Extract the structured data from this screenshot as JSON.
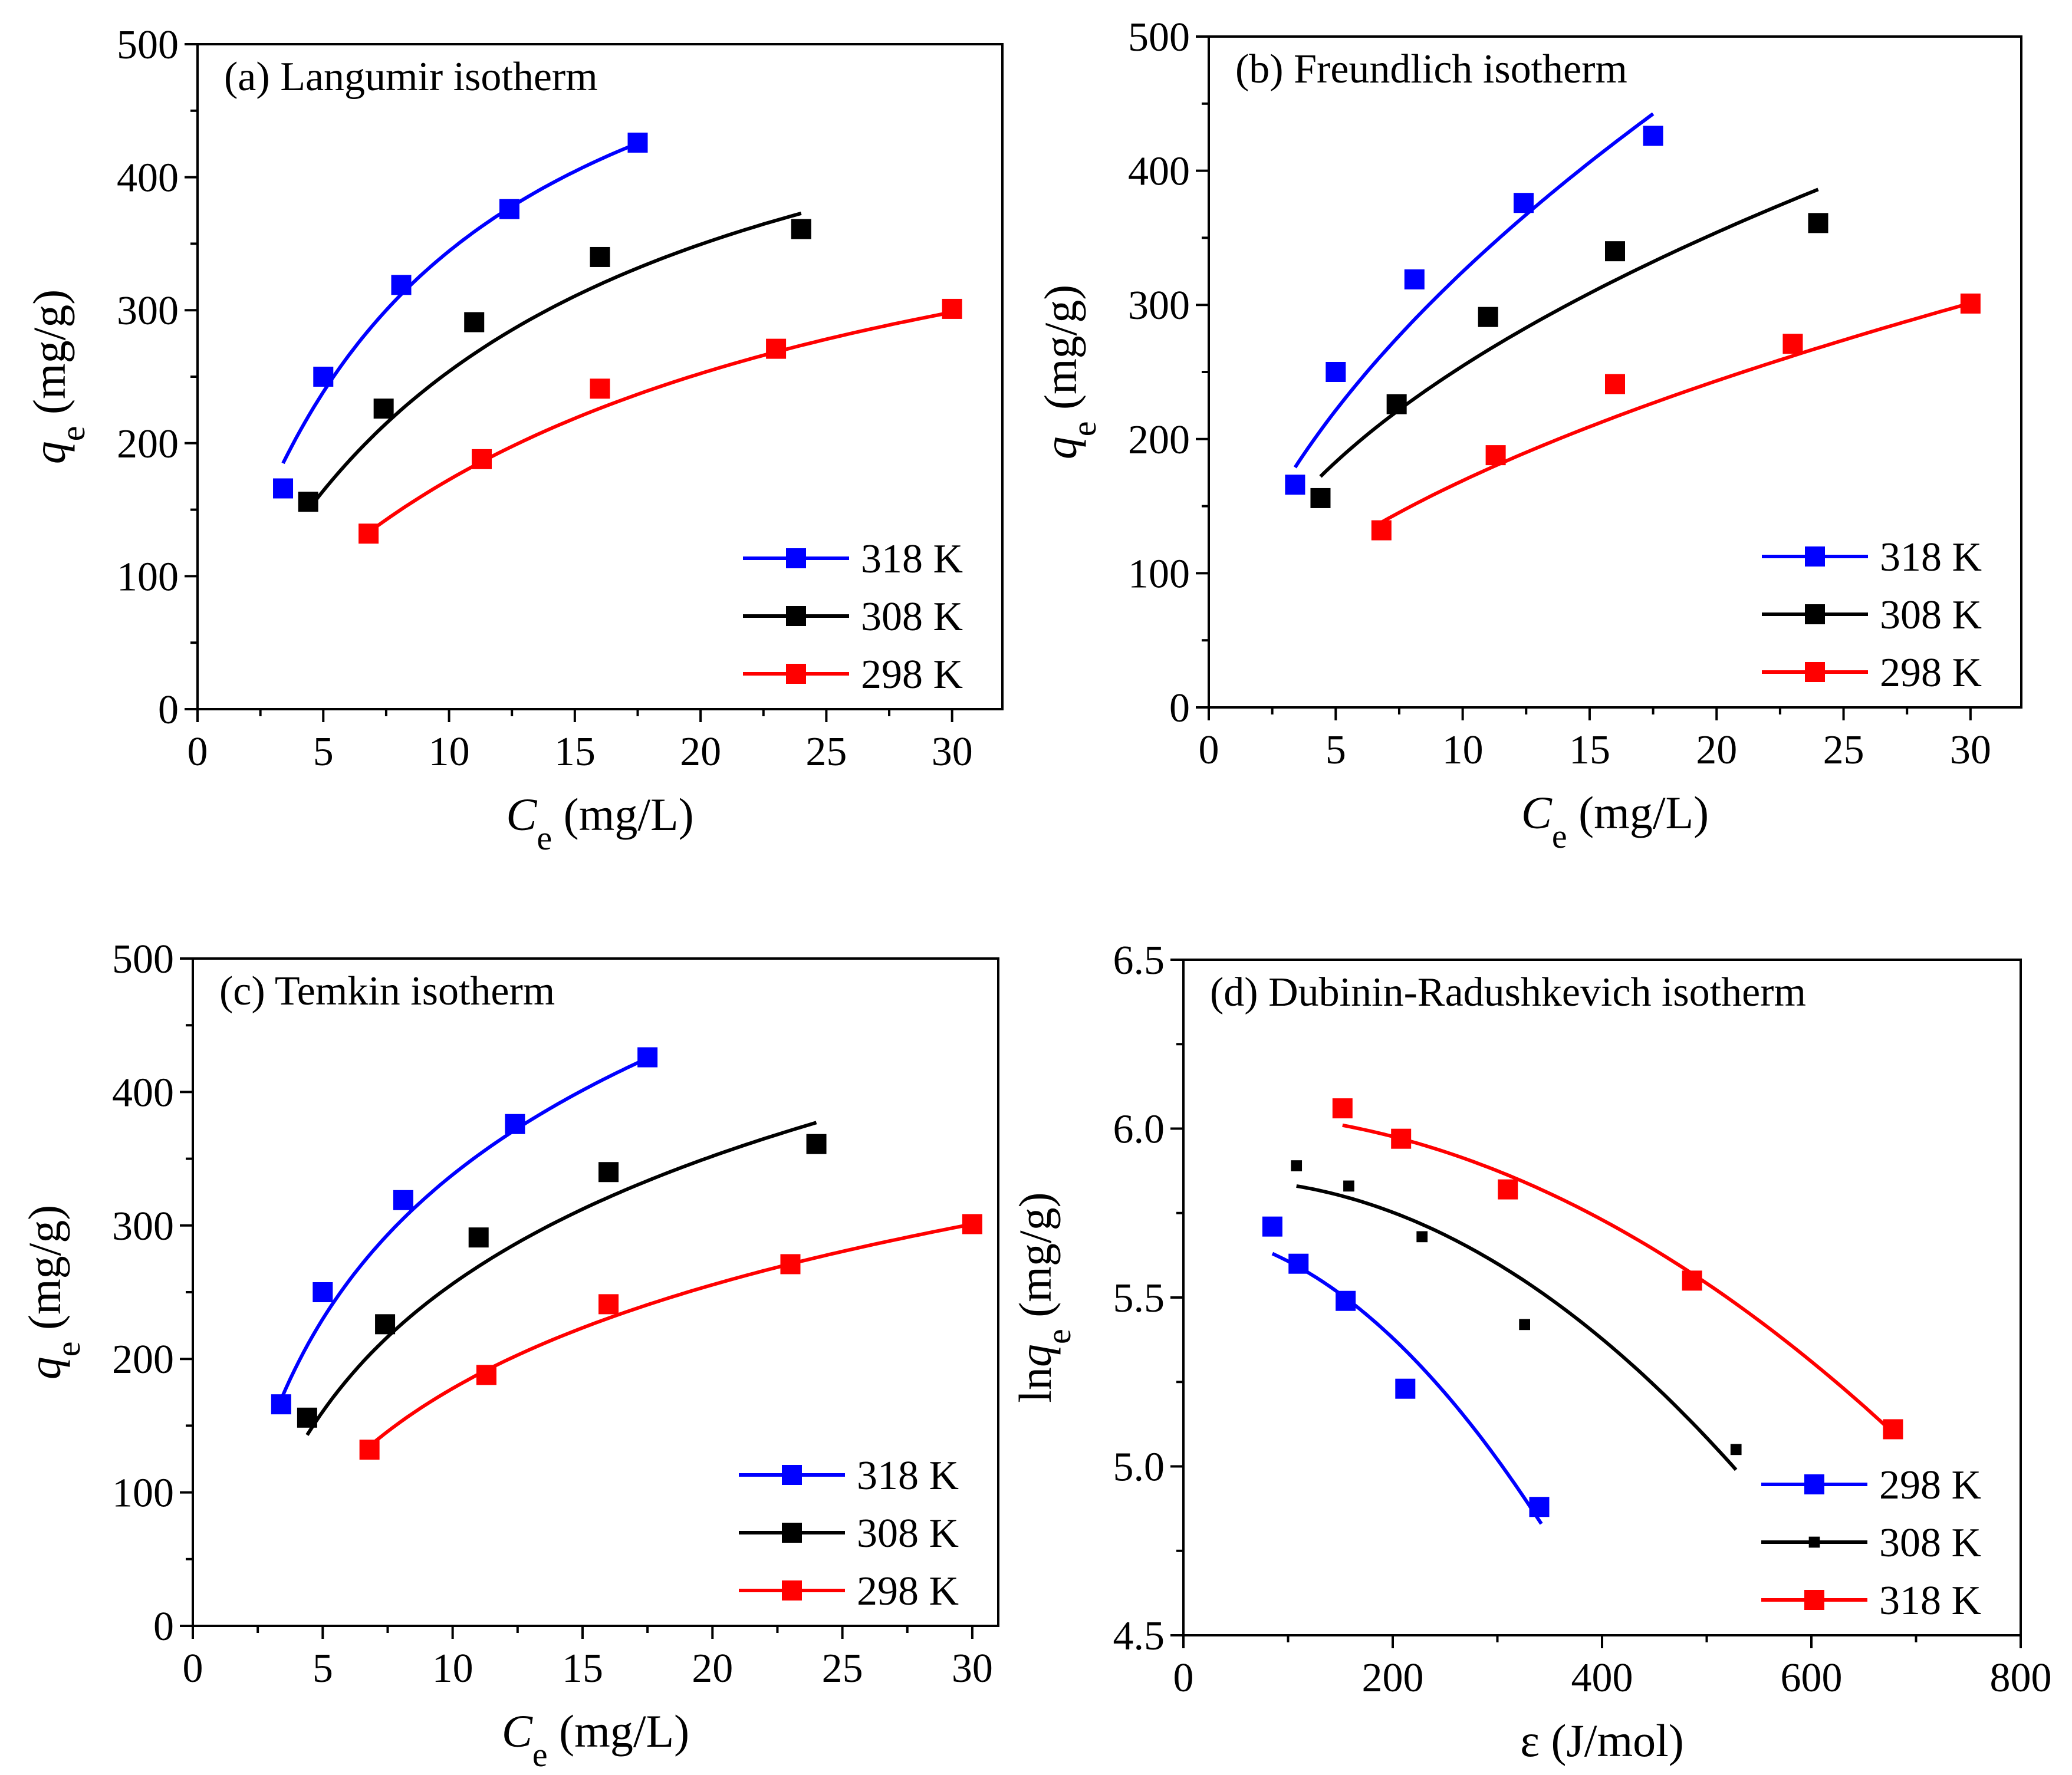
{
  "chart_data": [
    {
      "type": "scatter",
      "panel": "a",
      "title": "(a)  Langumir isotherm",
      "xlabel": {
        "symbol": "C",
        "subscript": "e",
        "unit": " (mg/L)"
      },
      "ylabel": {
        "symbol": "q",
        "subscript": "e",
        "unit": " (mg/g)"
      },
      "xlim": [
        0,
        32
      ],
      "ylim": [
        0,
        500
      ],
      "xticks": [
        0,
        5,
        10,
        15,
        20,
        25,
        30
      ],
      "yticks": [
        0,
        100,
        200,
        300,
        400,
        500
      ],
      "tick_decimals": 0,
      "legend_position": "bottom-right",
      "series": [
        {
          "name": "318 K",
          "color": "#0000ff",
          "marker_size": 1.0,
          "x": [
            3.4,
            5.0,
            8.1,
            12.4,
            17.5
          ],
          "y": [
            166,
            250,
            319,
            376,
            426
          ],
          "fit_x": [
            3.4,
            17.4
          ],
          "fit": {
            "model": "langmuir",
            "qm": 620,
            "K": 0.125
          }
        },
        {
          "name": "308 K",
          "color": "#000000",
          "marker_size": 1.0,
          "x": [
            4.4,
            7.4,
            11.0,
            16.0,
            24.0
          ],
          "y": [
            156,
            226,
            291,
            340,
            361
          ],
          "fit_x": [
            4.4,
            24.0
          ],
          "fit": {
            "model": "langmuir",
            "qm": 560,
            "K": 0.083
          }
        },
        {
          "name": "298 K",
          "color": "#ff0000",
          "marker_size": 1.0,
          "x": [
            6.8,
            11.3,
            16.0,
            23.0,
            30.0
          ],
          "y": [
            132,
            188,
            241,
            271,
            301
          ],
          "fit_x": [
            6.8,
            30.0
          ],
          "fit": {
            "model": "langmuir",
            "qm": 470,
            "K": 0.058
          }
        }
      ]
    },
    {
      "type": "scatter",
      "panel": "b",
      "title": "(b)  Freundlich isotherm",
      "xlabel": {
        "symbol": "C",
        "subscript": "e",
        "unit": " (mg/L)"
      },
      "ylabel": {
        "symbol": "q",
        "subscript": "e",
        "unit": " (mg/g)"
      },
      "xlim": [
        0,
        32
      ],
      "ylim": [
        0,
        500
      ],
      "xticks": [
        0,
        5,
        10,
        15,
        20,
        25,
        30
      ],
      "yticks": [
        0,
        100,
        200,
        300,
        400,
        500
      ],
      "tick_decimals": 0,
      "legend_position": "bottom-right",
      "series": [
        {
          "name": "318 K",
          "color": "#0000ff",
          "marker_size": 1.0,
          "x": [
            3.4,
            5.0,
            8.1,
            12.4,
            17.5
          ],
          "y": [
            166,
            250,
            319,
            376,
            426
          ],
          "fit_x": [
            3.4,
            17.5
          ],
          "fit": {
            "model": "freundlich",
            "Kf": 91,
            "n": 1.81
          }
        },
        {
          "name": "308 K",
          "color": "#000000",
          "marker_size": 1.0,
          "x": [
            4.4,
            7.4,
            11.0,
            16.0,
            24.0
          ],
          "y": [
            156,
            226,
            291,
            340,
            361
          ],
          "fit_x": [
            4.4,
            24.0
          ],
          "fit": {
            "model": "freundlich",
            "Kf": 85,
            "n": 2.1
          }
        },
        {
          "name": "298 K",
          "color": "#ff0000",
          "marker_size": 1.0,
          "x": [
            6.8,
            11.3,
            16.0,
            23.0,
            30.0
          ],
          "y": [
            132,
            188,
            241,
            271,
            301
          ],
          "fit_x": [
            6.8,
            30.0
          ],
          "fit": {
            "model": "freundlich",
            "Kf": 50.3,
            "n": 1.9
          }
        }
      ]
    },
    {
      "type": "scatter",
      "panel": "c",
      "title": "(c) Temkin isotherm",
      "xlabel": {
        "symbol": "C",
        "subscript": "e",
        "unit": " (mg/L)"
      },
      "ylabel": {
        "symbol": "q",
        "subscript": "e",
        "unit": " (mg/g)"
      },
      "xlim": [
        0,
        31
      ],
      "ylim": [
        0,
        500
      ],
      "xticks": [
        0,
        5,
        10,
        15,
        20,
        25,
        30
      ],
      "yticks": [
        0,
        100,
        200,
        300,
        400,
        500
      ],
      "tick_decimals": 0,
      "legend_position": "bottom-right",
      "series": [
        {
          "name": "318 K",
          "color": "#0000ff",
          "marker_size": 1.0,
          "x": [
            3.4,
            5.0,
            8.1,
            12.4,
            17.5
          ],
          "y": [
            166,
            250,
            319,
            376,
            426
          ],
          "fit_x": [
            3.4,
            17.4
          ],
          "fit": {
            "model": "temkin",
            "A": -21.2,
            "B": 156
          }
        },
        {
          "name": "308 K",
          "color": "#000000",
          "marker_size": 1.0,
          "x": [
            4.4,
            7.4,
            11.0,
            16.0,
            24.0
          ],
          "y": [
            156,
            226,
            291,
            340,
            361
          ],
          "fit_x": [
            4.4,
            24.0
          ],
          "fit": {
            "model": "temkin",
            "A": -61.5,
            "B": 138
          }
        },
        {
          "name": "298 K",
          "color": "#ff0000",
          "marker_size": 1.0,
          "x": [
            6.8,
            11.3,
            16.0,
            23.0,
            30.0
          ],
          "y": [
            132,
            188,
            241,
            271,
            301
          ],
          "fit_x": [
            6.8,
            30.0
          ],
          "fit": {
            "model": "temkin",
            "A": -80.0,
            "B": 112
          }
        }
      ]
    },
    {
      "type": "scatter",
      "panel": "d",
      "title": "(d)  Dubinin-Radushkevich isotherm",
      "xlabel": {
        "symbol": "",
        "subscript": "",
        "unit": "ε (J/mol)"
      },
      "ylabel": {
        "symbol": "lnq",
        "subscript": "e",
        "unit": " (mg/g)"
      },
      "xlim": [
        0,
        800
      ],
      "ylim": [
        4.5,
        6.5
      ],
      "xticks": [
        0,
        200,
        400,
        600,
        800
      ],
      "yticks": [
        4.5,
        5.0,
        5.5,
        6.0,
        6.5
      ],
      "tick_decimals": 1,
      "legend_position": "bottom-right",
      "series": [
        {
          "name": "298 K",
          "color": "#0000ff",
          "marker_size": 1.0,
          "x": [
            85,
            110,
            155,
            212,
            340
          ],
          "y": [
            5.71,
            5.6,
            5.49,
            5.23,
            4.88
          ],
          "fit_x": [
            85,
            342
          ],
          "fit": {
            "model": "quadratic",
            "points": [
              [
                85,
                5.63
              ],
              [
                200,
                5.38
              ],
              [
                342,
                4.83
              ]
            ]
          }
        },
        {
          "name": "308 K",
          "color": "#000000",
          "marker_size": 0.55,
          "x": [
            108,
            158,
            228,
            326,
            528
          ],
          "y": [
            5.89,
            5.83,
            5.68,
            5.42,
            5.05
          ],
          "fit_x": [
            108,
            528
          ],
          "fit": {
            "model": "quadratic",
            "points": [
              [
                108,
                5.83
              ],
              [
                300,
                5.6
              ],
              [
                528,
                4.99
              ]
            ]
          }
        },
        {
          "name": "318 K",
          "color": "#ff0000",
          "marker_size": 1.0,
          "x": [
            152,
            208,
            310,
            486,
            678
          ],
          "y": [
            6.06,
            5.97,
            5.82,
            5.55,
            5.11
          ],
          "fit_x": [
            152,
            678
          ],
          "fit": {
            "model": "quadratic",
            "points": [
              [
                152,
                6.01
              ],
              [
                400,
                5.73
              ],
              [
                678,
                5.1
              ]
            ]
          }
        }
      ]
    }
  ]
}
